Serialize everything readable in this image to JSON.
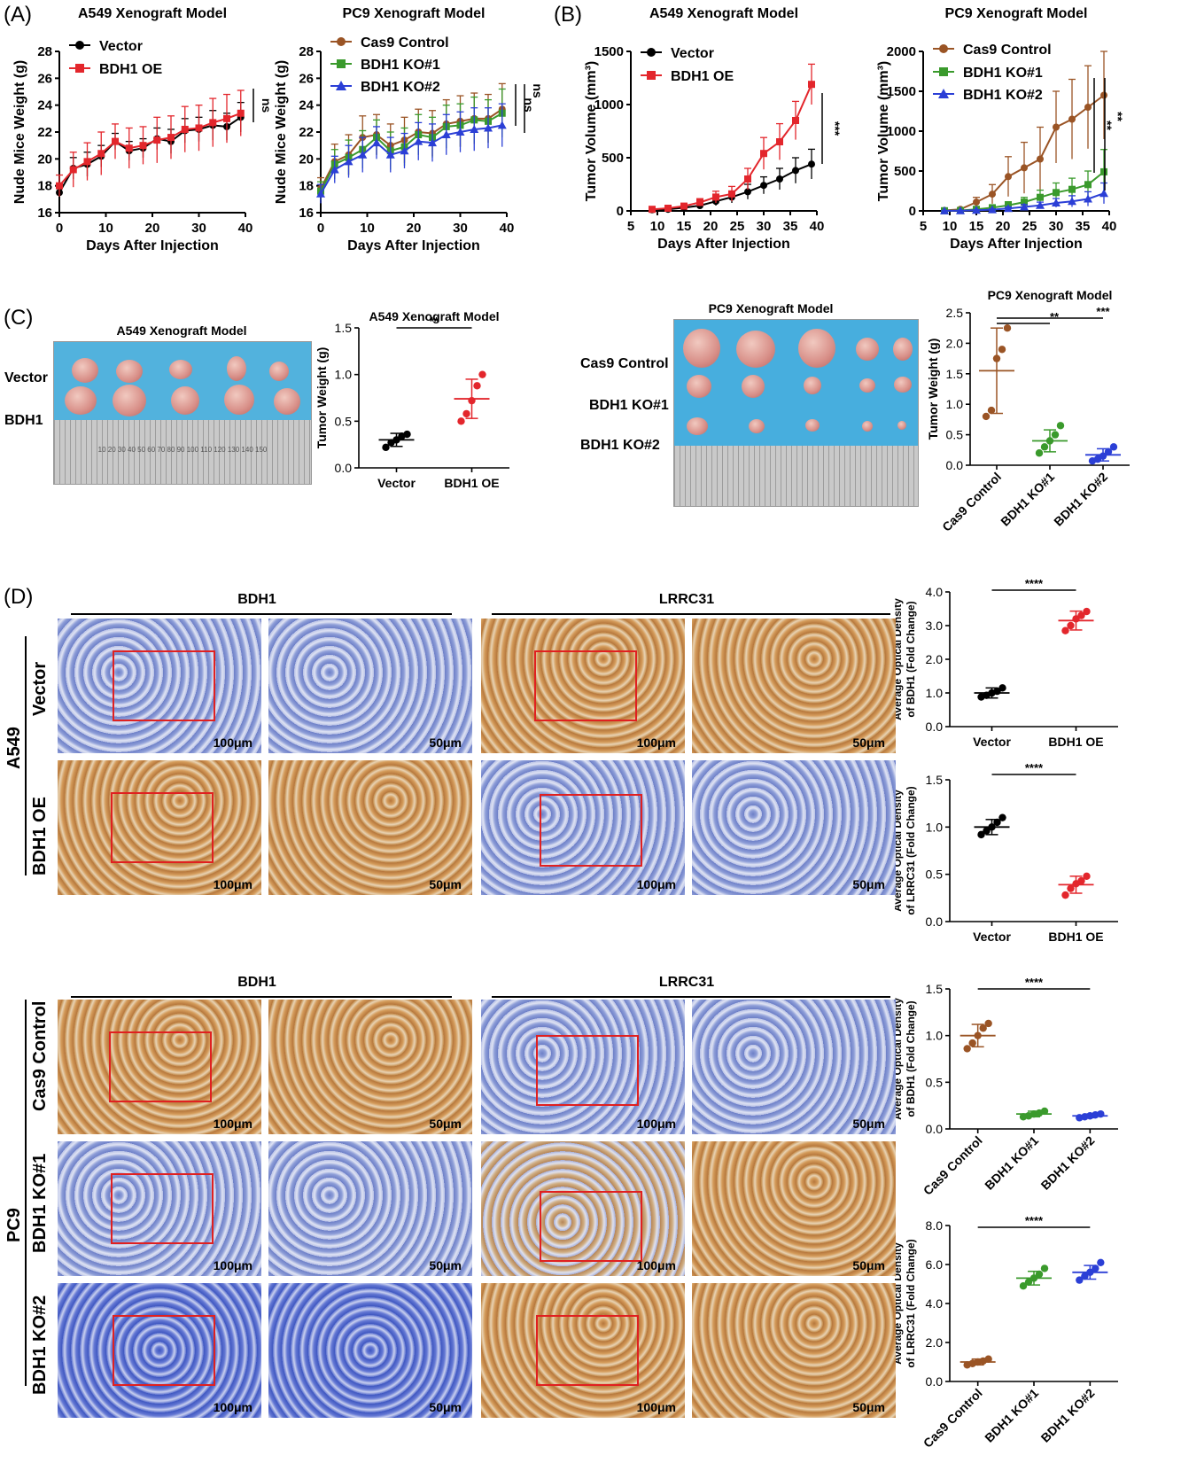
{
  "panels": {
    "A": "(A)",
    "B": "(B)",
    "C": "(C)",
    "D": "(D)"
  },
  "colors": {
    "black": "#000000",
    "red": "#e3262c",
    "brown": "#9a5425",
    "green": "#3a9a2c",
    "blue": "#2b3fd6"
  },
  "chart_data": [
    {
      "id": "A-left",
      "type": "line",
      "title": "A549 Xenograft Model",
      "xlabel": "Days After Injection",
      "ylabel": "Nude Mice Weight (g)",
      "xlim": [
        0,
        40
      ],
      "ylim": [
        16,
        28
      ],
      "xticks": [
        "0",
        "10",
        "20",
        "30",
        "40"
      ],
      "yticks": [
        "16",
        "18",
        "20",
        "22",
        "24",
        "26",
        "28"
      ],
      "annotation": "ns",
      "x": [
        0,
        3,
        6,
        9,
        12,
        15,
        18,
        21,
        24,
        27,
        30,
        33,
        36,
        39
      ],
      "series": [
        {
          "name": "Vector",
          "color": "#000000",
          "marker": "circle",
          "values": [
            17.5,
            19.3,
            19.6,
            20.2,
            21.3,
            20.6,
            20.8,
            21.5,
            21.3,
            22.1,
            22.2,
            22.5,
            22.4,
            23.1
          ],
          "err": [
            0.5,
            0.8,
            0.9,
            0.8,
            0.6,
            0.7,
            0.7,
            0.8,
            0.9,
            0.9,
            0.9,
            1.1,
            1.0,
            1.1
          ]
        },
        {
          "name": "BDH1 OE",
          "color": "#e3262c",
          "marker": "square",
          "values": [
            18.0,
            19.2,
            19.8,
            20.4,
            21.3,
            20.8,
            21.0,
            21.4,
            21.6,
            22.2,
            22.3,
            22.7,
            23.0,
            23.4
          ],
          "err": [
            0.8,
            1.3,
            1.4,
            1.6,
            1.3,
            1.5,
            1.4,
            1.7,
            1.6,
            1.7,
            1.7,
            1.8,
            1.8,
            1.7
          ]
        }
      ]
    },
    {
      "id": "A-right",
      "type": "line",
      "title": "PC9 Xenograft Model",
      "xlabel": "Days After Injection",
      "ylabel": "Nude Mice Weight (g)",
      "xlim": [
        0,
        40
      ],
      "ylim": [
        16,
        28
      ],
      "xticks": [
        "0",
        "10",
        "20",
        "30",
        "40"
      ],
      "yticks": [
        "16",
        "18",
        "20",
        "22",
        "24",
        "26",
        "28"
      ],
      "annotations": [
        "ns",
        "ns"
      ],
      "x": [
        0,
        3,
        6,
        9,
        12,
        15,
        18,
        21,
        24,
        27,
        30,
        33,
        36,
        39
      ],
      "series": [
        {
          "name": "Cas9 Control",
          "color": "#9a5425",
          "marker": "circle",
          "values": [
            17.8,
            19.8,
            20.3,
            21.6,
            21.8,
            21.0,
            21.4,
            22.0,
            21.9,
            22.6,
            22.8,
            23.0,
            23.0,
            23.7
          ],
          "err": [
            0.8,
            1.3,
            1.5,
            1.6,
            1.5,
            1.6,
            1.7,
            1.7,
            1.7,
            1.8,
            1.9,
            1.9,
            1.8,
            1.9
          ]
        },
        {
          "name": "BDH1 KO#1",
          "color": "#3a9a2c",
          "marker": "square",
          "values": [
            17.6,
            19.6,
            20.1,
            20.7,
            21.6,
            20.6,
            20.9,
            21.8,
            21.6,
            22.4,
            22.5,
            22.9,
            22.8,
            23.4
          ],
          "err": [
            0.7,
            1.1,
            1.3,
            1.4,
            1.3,
            1.4,
            1.4,
            1.5,
            1.5,
            1.6,
            1.6,
            1.7,
            1.6,
            1.8
          ]
        },
        {
          "name": "BDH1 KO#2",
          "color": "#2b3fd6",
          "marker": "triangle",
          "values": [
            17.4,
            19.2,
            19.8,
            20.3,
            21.2,
            20.3,
            20.6,
            21.3,
            21.2,
            21.8,
            22.0,
            22.2,
            22.3,
            22.5
          ],
          "err": [
            0.7,
            1.0,
            1.2,
            1.3,
            1.2,
            1.3,
            1.3,
            1.4,
            1.4,
            1.5,
            1.5,
            1.6,
            1.5,
            1.6
          ]
        }
      ]
    },
    {
      "id": "B-left",
      "type": "line",
      "title": "A549 Xenograft Model",
      "xlabel": "Days After Injection",
      "ylabel": "Tumor Volume (mm³)",
      "xlim": [
        5,
        40
      ],
      "ylim": [
        0,
        1500
      ],
      "xticks": [
        "5",
        "10",
        "15",
        "20",
        "25",
        "30",
        "35",
        "40"
      ],
      "yticks": [
        "0",
        "500",
        "1000",
        "1500"
      ],
      "annotation": "***",
      "x": [
        9,
        12,
        15,
        18,
        21,
        24,
        27,
        30,
        33,
        36,
        39
      ],
      "series": [
        {
          "name": "Vector",
          "color": "#000000",
          "marker": "circle",
          "values": [
            10,
            15,
            30,
            50,
            90,
            130,
            180,
            240,
            300,
            380,
            440
          ],
          "err": [
            5,
            8,
            15,
            25,
            40,
            55,
            70,
            80,
            100,
            120,
            140
          ]
        },
        {
          "name": "BDH1 OE",
          "color": "#e3262c",
          "marker": "square",
          "values": [
            15,
            25,
            45,
            80,
            130,
            160,
            300,
            540,
            650,
            850,
            1190
          ],
          "err": [
            8,
            12,
            25,
            35,
            55,
            70,
            100,
            150,
            170,
            180,
            190
          ]
        }
      ]
    },
    {
      "id": "B-right",
      "type": "line",
      "title": "PC9 Xenograft Model",
      "xlabel": "Days After Injection",
      "ylabel": "Tumor Volume (mm³)",
      "xlim": [
        5,
        40
      ],
      "ylim": [
        0,
        2000
      ],
      "xticks": [
        "5",
        "10",
        "15",
        "20",
        "25",
        "30",
        "35",
        "40"
      ],
      "yticks": [
        "0",
        "500",
        "1000",
        "1500",
        "2000"
      ],
      "annotations": [
        "**",
        "**"
      ],
      "x": [
        9,
        12,
        15,
        18,
        21,
        24,
        27,
        30,
        33,
        36,
        39
      ],
      "series": [
        {
          "name": "Cas9 Control",
          "color": "#9a5425",
          "marker": "circle",
          "values": [
            5,
            20,
            110,
            210,
            430,
            540,
            650,
            1050,
            1150,
            1300,
            1450
          ],
          "err": [
            5,
            15,
            60,
            120,
            250,
            320,
            400,
            450,
            500,
            520,
            550
          ]
        },
        {
          "name": "BDH1 KO#1",
          "color": "#3a9a2c",
          "marker": "square",
          "values": [
            2,
            5,
            20,
            40,
            70,
            110,
            170,
            230,
            270,
            330,
            490
          ],
          "err": [
            2,
            5,
            15,
            25,
            45,
            60,
            90,
            120,
            140,
            170,
            280
          ]
        },
        {
          "name": "BDH1 KO#2",
          "color": "#2b3fd6",
          "marker": "triangle",
          "values": [
            1,
            3,
            8,
            15,
            30,
            50,
            70,
            100,
            120,
            150,
            220
          ],
          "err": [
            1,
            3,
            5,
            10,
            20,
            30,
            40,
            55,
            70,
            90,
            130
          ]
        }
      ]
    },
    {
      "id": "C-left",
      "type": "scatter",
      "title": "A549 Xenograft Model",
      "ylabel": "Tumor Weight (g)",
      "ylim": [
        0,
        1.5
      ],
      "yticks": [
        "0.0",
        "0.5",
        "1.0",
        "1.5"
      ],
      "categories": [
        "Vector",
        "BDH1 OE"
      ],
      "annotation": "**",
      "groups": [
        {
          "name": "Vector",
          "color": "#000000",
          "mean": 0.3,
          "sd": 0.07,
          "points": [
            0.22,
            0.27,
            0.3,
            0.34,
            0.36
          ]
        },
        {
          "name": "BDH1 OE",
          "color": "#e3262c",
          "mean": 0.74,
          "sd": 0.21,
          "points": [
            0.5,
            0.58,
            0.72,
            0.88,
            1.0
          ]
        }
      ]
    },
    {
      "id": "C-right",
      "type": "scatter",
      "title": "PC9 Xenograft Model",
      "ylabel": "Tumor Weight (g)",
      "ylim": [
        0,
        2.5
      ],
      "yticks": [
        "0.0",
        "0.5",
        "1.0",
        "1.5",
        "2.0",
        "2.5"
      ],
      "categories": [
        "Cas9 Control",
        "BDH1 KO#1",
        "BDH1 KO#2"
      ],
      "annotations": [
        "**",
        "***"
      ],
      "groups": [
        {
          "name": "Cas9 Control",
          "color": "#9a5425",
          "mean": 1.55,
          "sd": 0.7,
          "points": [
            0.8,
            0.9,
            1.75,
            1.9,
            2.25
          ]
        },
        {
          "name": "BDH1 KO#1",
          "color": "#3a9a2c",
          "mean": 0.4,
          "sd": 0.18,
          "points": [
            0.2,
            0.3,
            0.4,
            0.5,
            0.65
          ]
        },
        {
          "name": "BDH1 KO#2",
          "color": "#2b3fd6",
          "mean": 0.17,
          "sd": 0.1,
          "points": [
            0.07,
            0.1,
            0.15,
            0.22,
            0.3
          ]
        }
      ]
    },
    {
      "id": "D-1",
      "type": "scatter",
      "ylabel": "Average Optical Density of BDH1 (Fold Change)",
      "ylim": [
        0,
        4.0
      ],
      "yticks": [
        "0.0",
        "1.0",
        "2.0",
        "3.0",
        "4.0"
      ],
      "categories": [
        "Vector",
        "BDH1 OE"
      ],
      "annotation": "****",
      "groups": [
        {
          "name": "Vector",
          "color": "#000000",
          "mean": 1.0,
          "sd": 0.15,
          "points": [
            0.88,
            0.93,
            1.0,
            1.05,
            1.15
          ]
        },
        {
          "name": "BDH1 OE",
          "color": "#e3262c",
          "mean": 3.15,
          "sd": 0.28,
          "points": [
            2.85,
            3.0,
            3.2,
            3.3,
            3.42
          ]
        }
      ]
    },
    {
      "id": "D-2",
      "type": "scatter",
      "ylabel": "Average Optical Density of LRRC31 (Fold Change)",
      "ylim": [
        0,
        1.5
      ],
      "yticks": [
        "0.0",
        "0.5",
        "1.0",
        "1.5"
      ],
      "categories": [
        "Vector",
        "BDH1 OE"
      ],
      "annotation": "****",
      "groups": [
        {
          "name": "Vector",
          "color": "#000000",
          "mean": 1.0,
          "sd": 0.08,
          "points": [
            0.92,
            0.96,
            1.0,
            1.05,
            1.1
          ]
        },
        {
          "name": "BDH1 OE",
          "color": "#e3262c",
          "mean": 0.39,
          "sd": 0.09,
          "points": [
            0.28,
            0.35,
            0.4,
            0.43,
            0.48
          ]
        }
      ]
    },
    {
      "id": "D-3",
      "type": "scatter",
      "ylabel": "Average Optical Density of BDH1 (Fold Change)",
      "ylim": [
        0,
        1.5
      ],
      "yticks": [
        "0.0",
        "0.5",
        "1.0",
        "1.5"
      ],
      "categories": [
        "Cas9 Control",
        "BDH1 KO#1",
        "BDH1 KO#2"
      ],
      "annotation": "****",
      "groups": [
        {
          "name": "Cas9 Control",
          "color": "#9a5425",
          "mean": 1.0,
          "sd": 0.12,
          "points": [
            0.86,
            0.92,
            1.0,
            1.08,
            1.13
          ]
        },
        {
          "name": "BDH1 KO#1",
          "color": "#3a9a2c",
          "mean": 0.16,
          "sd": 0.03,
          "points": [
            0.13,
            0.14,
            0.16,
            0.17,
            0.19
          ]
        },
        {
          "name": "BDH1 KO#2",
          "color": "#2b3fd6",
          "mean": 0.14,
          "sd": 0.02,
          "points": [
            0.12,
            0.13,
            0.14,
            0.15,
            0.16
          ]
        }
      ]
    },
    {
      "id": "D-4",
      "type": "scatter",
      "ylabel": "Average Optical Density of LRRC31 (Fold Change)",
      "ylim": [
        0,
        8.0
      ],
      "yticks": [
        "0.0",
        "2.0",
        "4.0",
        "6.0",
        "8.0"
      ],
      "categories": [
        "Cas9 Control",
        "BDH1 KO#1",
        "BDH1 KO#2"
      ],
      "annotation": "****",
      "groups": [
        {
          "name": "Cas9 Control",
          "color": "#9a5425",
          "mean": 1.0,
          "sd": 0.15,
          "points": [
            0.85,
            0.92,
            1.0,
            1.05,
            1.15
          ]
        },
        {
          "name": "BDH1 KO#1",
          "color": "#3a9a2c",
          "mean": 5.3,
          "sd": 0.35,
          "points": [
            4.9,
            5.1,
            5.3,
            5.5,
            5.8
          ]
        },
        {
          "name": "BDH1 KO#2",
          "color": "#2b3fd6",
          "mean": 5.6,
          "sd": 0.35,
          "points": [
            5.2,
            5.4,
            5.6,
            5.8,
            6.1
          ]
        }
      ]
    }
  ],
  "photos": {
    "a549_title": "A549 Xenograft Model",
    "a549_rows": [
      "Vector",
      "BDH1"
    ],
    "pc9_title": "PC9 Xenograft Model",
    "pc9_rows": [
      "Cas9 Control",
      "BDH1 KO#1",
      "BDH1 KO#2"
    ],
    "ruler_text": "10 20 30 40 50 60 70 80 90 100 110 120 130 140 150"
  },
  "ihc": {
    "bdh1": "BDH1",
    "lrrc31": "LRRC31",
    "a549": "A549",
    "pc9": "PC9",
    "a549_rows": [
      "Vector",
      "BDH1 OE"
    ],
    "pc9_rows": [
      "Cas9 Control",
      "BDH1 KO#1",
      "BDH1 KO#2"
    ],
    "scale_low": "100μm",
    "scale_high": "50μm"
  }
}
